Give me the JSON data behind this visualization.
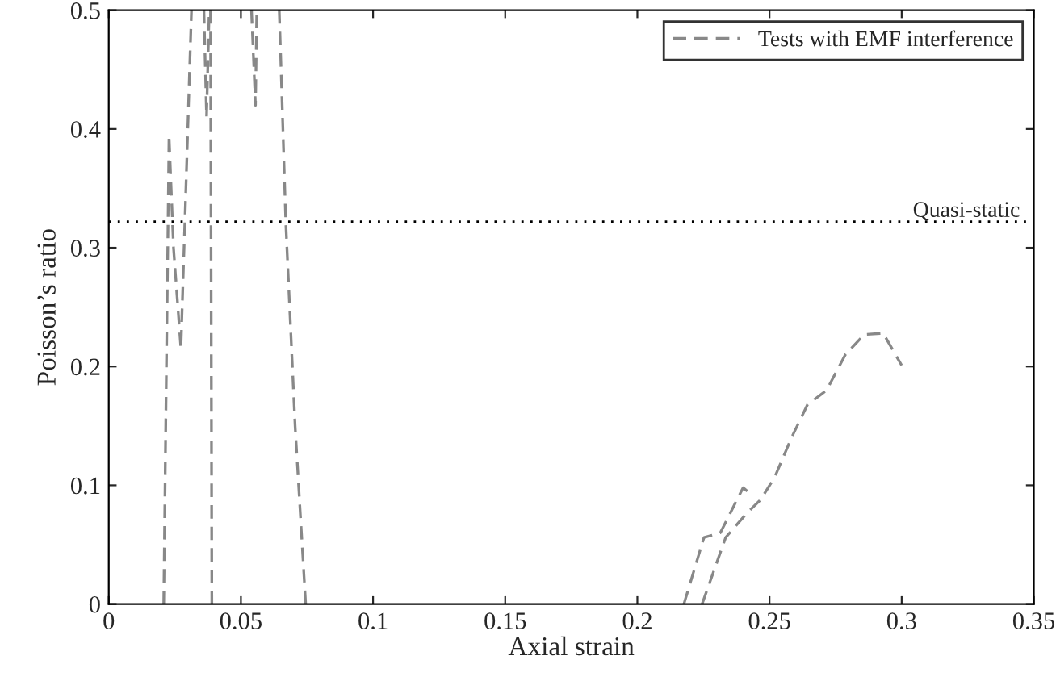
{
  "chart_data": {
    "type": "line",
    "xlabel": "Axial strain",
    "ylabel": "Poisson’s ratio",
    "xlim": [
      0,
      0.35
    ],
    "ylim": [
      0,
      0.5
    ],
    "xticks": [
      0,
      0.05,
      0.1,
      0.15,
      0.2,
      0.25,
      0.3,
      0.35
    ],
    "yticks": [
      0,
      0.1,
      0.2,
      0.3,
      0.4,
      0.5
    ],
    "grid": false,
    "legend": "top right",
    "line_style": "dashed",
    "marker": "none",
    "series": [
      {
        "name": "Tests with EMF interference",
        "color": "#888888",
        "x": [
          0.0208,
          0.0228,
          0.0245,
          0.0273,
          0.0313
        ],
        "values": [
          0,
          0.395,
          0.3,
          0.215,
          0.5
        ]
      },
      {
        "color": "#888888",
        "x": [
          0.036,
          0.037,
          0.038
        ],
        "values": [
          0.5,
          0.41,
          0.5
        ]
      },
      {
        "color": "#888888",
        "x": [
          0.0385,
          0.039
        ],
        "values": [
          0.5,
          0
        ]
      },
      {
        "color": "#888888",
        "x": [
          0.054,
          0.0555,
          0.056
        ],
        "values": [
          0.5,
          0.42,
          0.5
        ]
      },
      {
        "color": "#888888",
        "x": [
          0.0645,
          0.067,
          0.0705,
          0.0745
        ],
        "values": [
          0.5,
          0.32,
          0.15,
          0
        ]
      },
      {
        "color": "#888888",
        "x": [
          0.2176,
          0.2252,
          0.2314,
          0.24,
          0.2427
        ],
        "values": [
          0,
          0.056,
          0.06,
          0.098,
          0.093
        ]
      },
      {
        "color": "#888888",
        "x": [
          0.2245,
          0.2334,
          0.2416,
          0.2467,
          0.252,
          0.2583,
          0.2644,
          0.2716,
          0.2787,
          0.2859,
          0.293,
          0.3
        ],
        "values": [
          0,
          0.056,
          0.077,
          0.088,
          0.107,
          0.14,
          0.168,
          0.18,
          0.21,
          0.227,
          0.228,
          0.201
        ]
      }
    ],
    "ref_lines": [
      {
        "axis": "y",
        "value": 0.322,
        "label": "Quasi-static",
        "color": "#000000",
        "line_style": "dotted"
      }
    ]
  }
}
